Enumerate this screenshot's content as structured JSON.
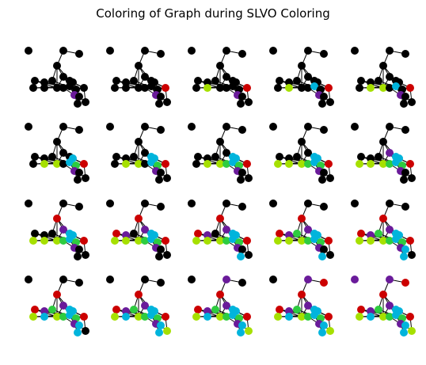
{
  "title": "Coloring of Graph during SLVO Coloring",
  "colors": {
    "uncolored": "#000000",
    "color_a": "#cc0000",
    "color_b": "#6a1b9a",
    "color_c": "#a6e000",
    "color_d": "#00b4dc",
    "color_e": "#2ecc40",
    "edge": "#000000"
  },
  "frame_count": 20,
  "grid": {
    "rows": 4,
    "cols": 5
  }
}
